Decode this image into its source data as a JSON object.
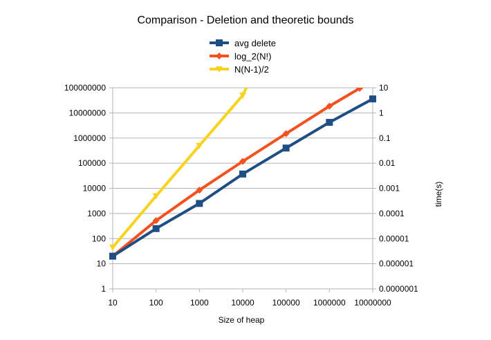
{
  "chart_data": {
    "type": "line",
    "title": "Comparison - Deletion and theoretic bounds",
    "xlabel": "Size of heap",
    "ylabel": "",
    "y2label": "time(s)",
    "x_scale": "log",
    "y_scale": "log",
    "y2_scale": "log",
    "xlim": [
      10,
      10000000
    ],
    "ylim": [
      1,
      100000000
    ],
    "y2lim": [
      1e-07,
      10
    ],
    "x_ticks": [
      "10",
      "100",
      "1000",
      "10000",
      "100000",
      "1000000",
      "10000000"
    ],
    "y_ticks": [
      "1",
      "10",
      "100",
      "1000",
      "10000",
      "100000",
      "1000000",
      "10000000",
      "100000000"
    ],
    "y2_ticks": [
      "0.0000001",
      "0.000001",
      "0.00001",
      "0.0001",
      "0.001",
      "0.01",
      "0.1",
      "1",
      "10"
    ],
    "grid": "horizontal",
    "legend_position": "top",
    "series": [
      {
        "name": "avg delete",
        "axis": "right",
        "color": "#1f4e84",
        "marker": "square",
        "x": [
          10,
          100,
          1000,
          10000,
          100000,
          1000000,
          10000000
        ],
        "y": [
          2e-06,
          2.5e-05,
          0.00025,
          0.0037,
          0.04,
          0.42,
          3.6
        ]
      },
      {
        "name": "log_2(N!)",
        "axis": "left",
        "color": "#f4511e",
        "marker": "diamond",
        "x": [
          10,
          100,
          1000,
          10000,
          100000,
          1000000,
          5000000
        ],
        "y": [
          20,
          520,
          8500,
          118000,
          1500000,
          18500000,
          95000000
        ]
      },
      {
        "name": "N(N-1)/2",
        "axis": "left",
        "color": "#f9d11f",
        "marker": "triangle-down",
        "x": [
          10,
          100,
          1000,
          10000,
          12000
        ],
        "y": [
          45,
          4950,
          499500,
          49995000,
          100000000
        ]
      }
    ]
  }
}
